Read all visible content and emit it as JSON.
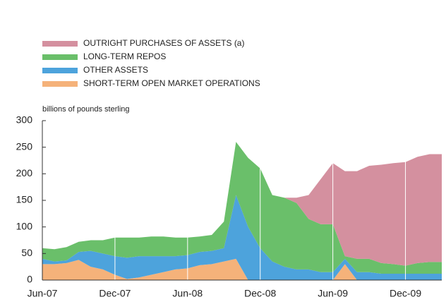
{
  "chart_data": {
    "type": "stacked-area",
    "y_label": "billions of pounds sterling",
    "categories": [
      "Jun-07",
      null,
      null,
      null,
      null,
      null,
      "Dec-07",
      null,
      null,
      null,
      null,
      null,
      "Jun-08",
      null,
      null,
      null,
      null,
      null,
      "Dec-08",
      null,
      null,
      null,
      null,
      null,
      "Jun-09",
      null,
      null,
      null,
      null,
      null,
      "Dec-09",
      null,
      null,
      null
    ],
    "series": [
      {
        "name": "OUTRIGHT PURCHASES OF ASSETS (a)",
        "color": "#d4909f",
        "values": [
          0,
          0,
          0,
          0,
          0,
          0,
          0,
          0,
          0,
          0,
          0,
          0,
          0,
          0,
          0,
          0,
          0,
          0,
          0,
          0,
          0,
          10,
          45,
          85,
          115,
          160,
          165,
          175,
          185,
          190,
          195,
          200,
          203,
          203
        ]
      },
      {
        "name": "LONG-TERM REPOS",
        "color": "#6abf6a",
        "values": [
          20,
          23,
          25,
          19,
          20,
          25,
          35,
          38,
          35,
          37,
          37,
          35,
          33,
          29,
          30,
          50,
          100,
          130,
          150,
          125,
          130,
          125,
          95,
          90,
          90,
          5,
          25,
          25,
          20,
          18,
          15,
          20,
          22,
          22
        ]
      },
      {
        "name": "OTHER ASSETS",
        "color": "#4da3dc",
        "values": [
          10,
          5,
          5,
          15,
          30,
          30,
          35,
          40,
          40,
          35,
          30,
          25,
          25,
          25,
          25,
          25,
          120,
          100,
          60,
          35,
          25,
          20,
          20,
          15,
          15,
          10,
          15,
          15,
          12,
          12,
          12,
          12,
          12,
          12
        ]
      },
      {
        "name": "SHORT-TERM OPEN MARKET OPERATIONS",
        "color": "#f5b27a",
        "values": [
          30,
          30,
          32,
          38,
          25,
          20,
          10,
          2,
          5,
          10,
          15,
          20,
          22,
          28,
          30,
          35,
          40,
          0,
          0,
          0,
          0,
          0,
          0,
          0,
          0,
          30,
          0,
          0,
          0,
          0,
          0,
          0,
          0,
          0
        ]
      }
    ],
    "ylim": [
      0,
      300
    ],
    "yticks": [
      0,
      50,
      100,
      150,
      200,
      250,
      300
    ]
  }
}
